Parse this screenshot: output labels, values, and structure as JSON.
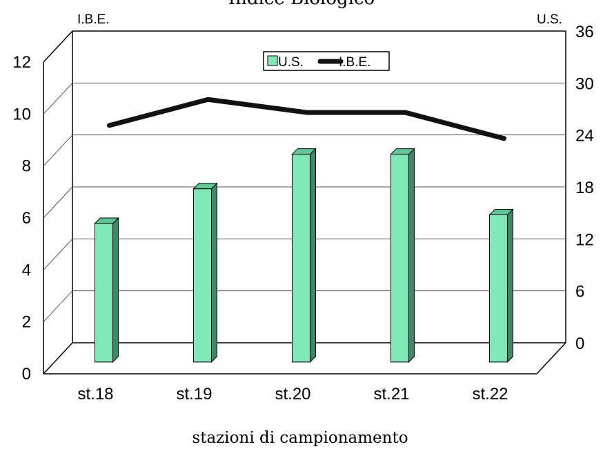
{
  "chart_data": {
    "type": "bar",
    "title": "Indice Biologico",
    "xlabel": "stazioni di campionamento",
    "y_left_label": "I.B.E.",
    "y_right_label": "U.S.",
    "categories": [
      "st.18",
      "st.19",
      "st.20",
      "st.21",
      "st.22"
    ],
    "y_left_ticks": [
      "0",
      "2",
      "4",
      "6",
      "8",
      "10",
      "12"
    ],
    "y_right_ticks": [
      "0",
      "6",
      "12",
      "18",
      "24",
      "30",
      "36"
    ],
    "ylim_left": [
      0,
      12
    ],
    "ylim_right": [
      0,
      36
    ],
    "series": [
      {
        "name": "U.S.",
        "type": "bar",
        "axis": "right",
        "color": "#80e8b8",
        "values": [
          16,
          20,
          24,
          24,
          17
        ]
      },
      {
        "name": "I.B.E.",
        "type": "line",
        "axis": "left",
        "color": "#111111",
        "values": [
          9,
          10,
          9.5,
          9.5,
          8.5
        ]
      }
    ],
    "legend": [
      "U.S.",
      "I.B.E."
    ],
    "legend_position": "top-center",
    "grid": true,
    "style": "3d"
  }
}
